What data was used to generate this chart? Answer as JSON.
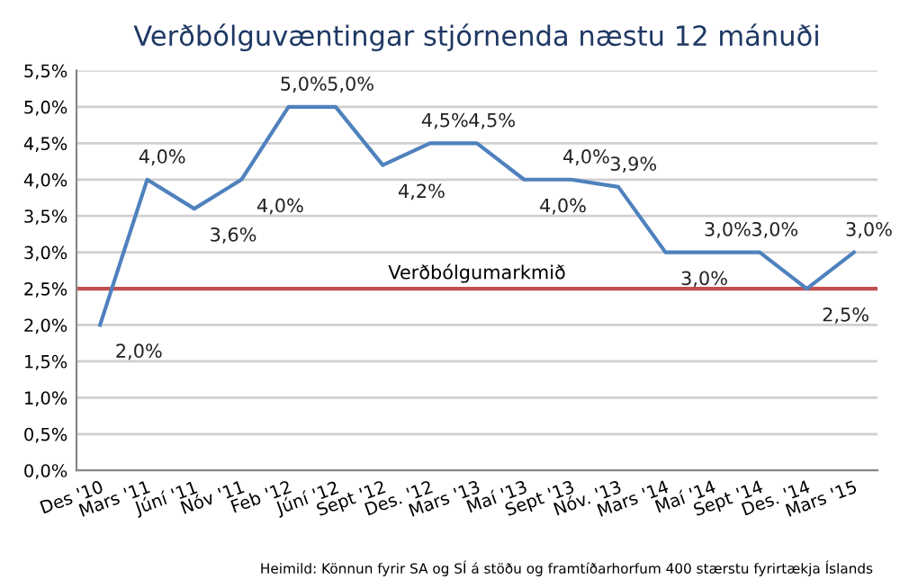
{
  "chart_data": {
    "type": "line",
    "title": "Verðbólguvæntingar stjórnenda næstu 12 mánuði",
    "categories": [
      "Des '10",
      "Mars '11",
      "Júní '11",
      "Nóv '11",
      "Feb '12",
      "Júní '12",
      "Sept '12",
      "Des. '12",
      "Mars '13",
      "Maí '13",
      "Sept '13",
      "Nóv. '13",
      "Mars '14",
      "Maí '14",
      "Sept '14",
      "Des. '14",
      "Mars '15"
    ],
    "series": [
      {
        "color": "#4f81bd",
        "values": [
          2.0,
          4.0,
          3.6,
          4.0,
          5.0,
          5.0,
          4.2,
          4.5,
          4.5,
          4.0,
          4.0,
          3.9,
          3.0,
          3.0,
          3.0,
          2.5,
          3.0
        ],
        "value_labels": [
          "2,0%",
          "4,0%",
          "3,6%",
          "4,0%",
          "5,0%",
          "5,0%",
          "4,2%",
          "4,5%",
          "4,5%",
          "4,0%",
          "4,0%",
          "3,9%",
          "3,0%",
          "3,0%",
          "3,0%",
          "2,5%",
          "3,0%"
        ]
      }
    ],
    "ylim": [
      0,
      5.5
    ],
    "yticks": [
      {
        "value": 0,
        "label": "0,0%"
      },
      {
        "value": 0.5,
        "label": "0,5%"
      },
      {
        "value": 1,
        "label": "1,0%"
      },
      {
        "value": 1.5,
        "label": "1,5%"
      },
      {
        "value": 2,
        "label": "2,0%"
      },
      {
        "value": 2.5,
        "label": "2,5%"
      },
      {
        "value": 3,
        "label": "3,0%"
      },
      {
        "value": 3.5,
        "label": "3,5%"
      },
      {
        "value": 4,
        "label": "4,0%"
      },
      {
        "value": 4.5,
        "label": "4,5%"
      },
      {
        "value": 5,
        "label": "5,0%"
      },
      {
        "value": 5.5,
        "label": "5,5%"
      }
    ],
    "ref_lines": [
      {
        "axis": "y",
        "value": 2.5,
        "label": "Verðbólgumarkmið",
        "color": "#c0504d"
      }
    ],
    "annotations": [
      "Heimild: Könnun fyrir SA og SÍ á stöðu og framtíðarhorfum 400 stærstu fyrirtækja Íslands"
    ],
    "grid": "y",
    "marker": "none",
    "line_style": "solid"
  }
}
